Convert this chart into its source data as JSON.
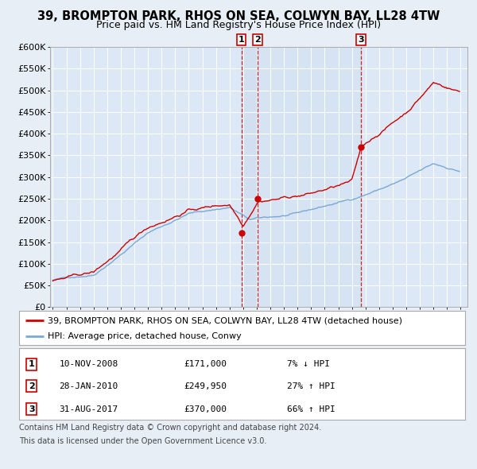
{
  "title": "39, BROMPTON PARK, RHOS ON SEA, COLWYN BAY, LL28 4TW",
  "subtitle": "Price paid vs. HM Land Registry's House Price Index (HPI)",
  "ylim": [
    0,
    600000
  ],
  "yticks": [
    0,
    50000,
    100000,
    150000,
    200000,
    250000,
    300000,
    350000,
    400000,
    450000,
    500000,
    550000,
    600000
  ],
  "ytick_labels": [
    "£0",
    "£50K",
    "£100K",
    "£150K",
    "£200K",
    "£250K",
    "£300K",
    "£350K",
    "£400K",
    "£450K",
    "£500K",
    "£550K",
    "£600K"
  ],
  "hpi_color": "#7aa8d4",
  "price_color": "#cc0000",
  "bg_color": "#e8eef5",
  "plot_bg_color": "#dce8f5",
  "grid_color": "#ffffff",
  "sale_dates_float": [
    2008.867,
    2010.08,
    2017.667
  ],
  "sale_prices": [
    171000,
    249950,
    370000
  ],
  "sale_labels": [
    "1",
    "2",
    "3"
  ],
  "legend_label_price": "39, BROMPTON PARK, RHOS ON SEA, COLWYN BAY, LL28 4TW (detached house)",
  "legend_label_hpi": "HPI: Average price, detached house, Conwy",
  "table_rows": [
    [
      "1",
      "10-NOV-2008",
      "£171,000",
      "7% ↓ HPI"
    ],
    [
      "2",
      "28-JAN-2010",
      "£249,950",
      "27% ↑ HPI"
    ],
    [
      "3",
      "31-AUG-2017",
      "£370,000",
      "66% ↑ HPI"
    ]
  ],
  "footer_line1": "Contains HM Land Registry data © Crown copyright and database right 2024.",
  "footer_line2": "This data is licensed under the Open Government Licence v3.0.",
  "title_fontsize": 10.5,
  "subtitle_fontsize": 9,
  "tick_fontsize": 8,
  "legend_fontsize": 8,
  "table_fontsize": 8,
  "footer_fontsize": 7,
  "xlim_left": 1994.8,
  "xlim_right": 2025.5
}
